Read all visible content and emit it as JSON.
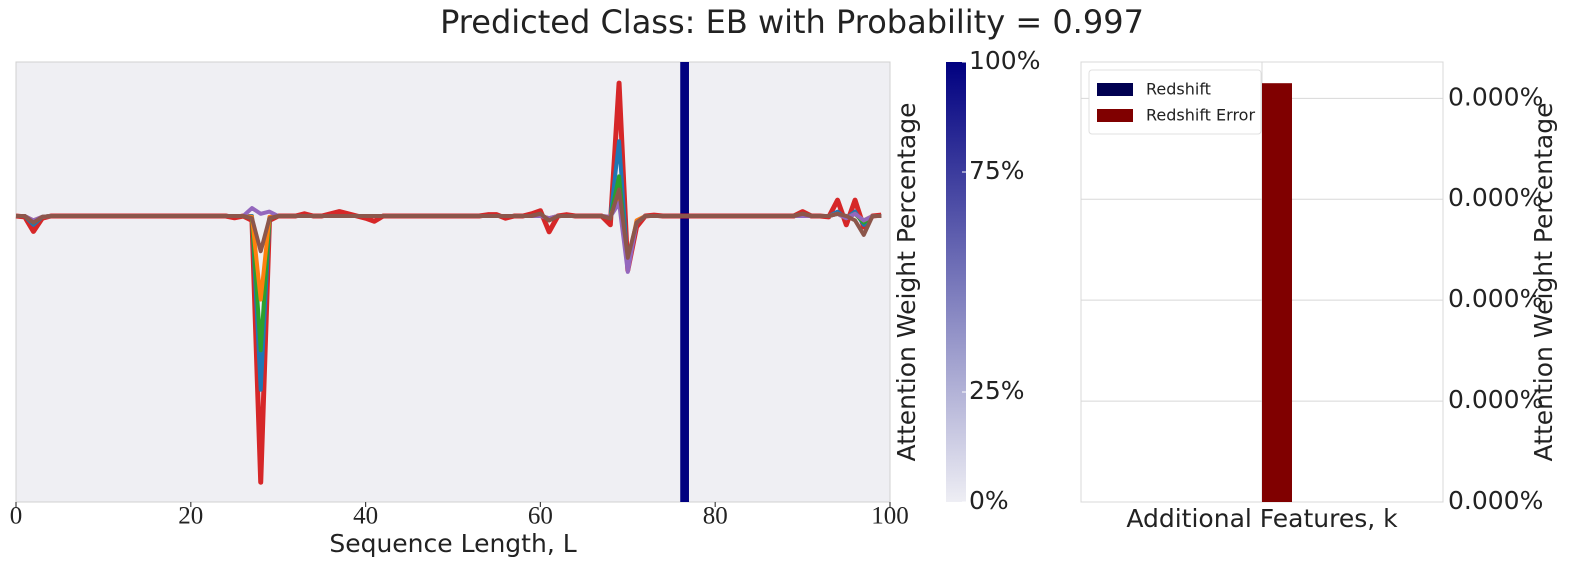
{
  "title": "Predicted Class: EB with Probability = 0.997",
  "chart_data": [
    {
      "type": "line",
      "xlabel": "Sequence Length, L",
      "xlim": [
        0,
        100
      ],
      "xticks": [
        0,
        20,
        40,
        60,
        80,
        100
      ],
      "ylim": [
        0,
        100
      ],
      "grid": false,
      "x": [
        0,
        1,
        2,
        3,
        4,
        5,
        6,
        7,
        8,
        9,
        10,
        11,
        12,
        13,
        14,
        15,
        16,
        17,
        18,
        19,
        20,
        21,
        22,
        23,
        24,
        25,
        26,
        27,
        28,
        29,
        30,
        31,
        32,
        33,
        34,
        35,
        36,
        37,
        38,
        39,
        40,
        41,
        42,
        43,
        44,
        45,
        46,
        47,
        48,
        49,
        50,
        51,
        52,
        53,
        54,
        55,
        56,
        57,
        58,
        59,
        60,
        61,
        62,
        63,
        64,
        65,
        66,
        67,
        68,
        69,
        70,
        71,
        72,
        73,
        74,
        75,
        76,
        77,
        78,
        79,
        80,
        81,
        82,
        83,
        84,
        85,
        86,
        87,
        88,
        89,
        90,
        91,
        92,
        93,
        94,
        95,
        96,
        97,
        98,
        99
      ],
      "highlight_span": [
        76,
        77
      ],
      "highlight_color": "#000080",
      "series": [
        {
          "color": "#d62728",
          "values": [
            65,
            64.8,
            61.5,
            64.5,
            65,
            65,
            65,
            65,
            65,
            65,
            65,
            65,
            65,
            65,
            65,
            65,
            65,
            65,
            65,
            65,
            65,
            65,
            65,
            65,
            65,
            64.6,
            65,
            64,
            4.5,
            64,
            65,
            65,
            65,
            65.5,
            65,
            65,
            65.5,
            66,
            65.5,
            65,
            64.5,
            63.8,
            65,
            65,
            65,
            65,
            65,
            65,
            65,
            65,
            65,
            65,
            65,
            65,
            65.3,
            65.3,
            64.5,
            65,
            65,
            65.5,
            66.2,
            61.4,
            65,
            65.3,
            65,
            65,
            65,
            65,
            63,
            95.2,
            52.7,
            62.5,
            65,
            65.2,
            65,
            65,
            65,
            65,
            65,
            65,
            65,
            65,
            65,
            65,
            65,
            65,
            65,
            65,
            65,
            65,
            66,
            65,
            65,
            64.8,
            68.6,
            63,
            68.6,
            62.5,
            65,
            65.2
          ]
        },
        {
          "color": "#1f77b4",
          "values": [
            65,
            65,
            63,
            64.8,
            65,
            65,
            65,
            65,
            65,
            65,
            65,
            65,
            65,
            65,
            65,
            65,
            65,
            65,
            65,
            65,
            65,
            65,
            65,
            65,
            65,
            65,
            65,
            65,
            25.5,
            64.5,
            65,
            65,
            65,
            65,
            65,
            65,
            65,
            65,
            65,
            65,
            65,
            65,
            65,
            65,
            65,
            65,
            65,
            65,
            65,
            65,
            65,
            65,
            65,
            65,
            65,
            65,
            65,
            65,
            65,
            65,
            65.5,
            64,
            65,
            65,
            65,
            65,
            65,
            65,
            64.5,
            82,
            53,
            63.5,
            65,
            65,
            65,
            65,
            65,
            65,
            65,
            65,
            65,
            65,
            65,
            65,
            65,
            65,
            65,
            65,
            65,
            65,
            65.5,
            65,
            65,
            65,
            66,
            64.5,
            66,
            63,
            65,
            65
          ]
        },
        {
          "color": "#2ca02c",
          "values": [
            65,
            65,
            63.5,
            64.8,
            65,
            65,
            65,
            65,
            65,
            65,
            65,
            65,
            65,
            65,
            65,
            65,
            65,
            65,
            65,
            65,
            65,
            65,
            65,
            65,
            65,
            65,
            65,
            64.5,
            34.5,
            64.5,
            65,
            65,
            65,
            65,
            65,
            65,
            65,
            65,
            65,
            65,
            65,
            65,
            65,
            65,
            65,
            65,
            65,
            65,
            65,
            65,
            65,
            65,
            65,
            65,
            65,
            65,
            65,
            65,
            65,
            65,
            65.5,
            64,
            65,
            65,
            65,
            65,
            65,
            65,
            64.5,
            74,
            53.5,
            63.5,
            65,
            65,
            65,
            65,
            65,
            65,
            65,
            65,
            65,
            65,
            65,
            65,
            65,
            65,
            65,
            65,
            65,
            65,
            65.5,
            65,
            65,
            65,
            65.5,
            64.5,
            65.5,
            63.5,
            65,
            65
          ]
        },
        {
          "color": "#ff7f0e",
          "values": [
            65,
            65,
            64,
            64.8,
            65,
            65,
            65,
            65,
            65,
            65,
            65,
            65,
            65,
            65,
            65,
            65,
            65,
            65,
            65,
            65,
            65,
            65,
            65,
            65,
            65,
            65,
            65,
            64.8,
            46,
            64.8,
            65,
            65,
            65,
            65,
            65,
            65,
            65,
            65,
            65,
            65,
            65,
            65,
            65,
            65,
            65,
            65,
            65,
            65,
            65,
            65,
            65,
            65,
            65,
            65,
            65,
            65,
            65,
            65,
            65,
            65,
            65,
            64.5,
            65,
            65,
            65,
            65,
            65,
            65,
            64.8,
            70,
            54,
            64,
            65,
            65,
            65,
            65,
            65,
            65,
            65,
            65,
            65,
            65,
            65,
            65,
            65,
            65,
            65,
            65,
            65,
            65,
            65,
            65,
            65,
            65,
            65.5,
            64.5,
            65.5,
            64,
            65,
            65
          ]
        },
        {
          "color": "#9467bd",
          "values": [
            65,
            65,
            64,
            64.8,
            65,
            65,
            65,
            65,
            65,
            65,
            65,
            65,
            65,
            65,
            65,
            65,
            65,
            65,
            65,
            65,
            65,
            65,
            65,
            65,
            65,
            65,
            65,
            66.8,
            65.5,
            66,
            65,
            65,
            65,
            65,
            65,
            65,
            65,
            65,
            65,
            65,
            65,
            65,
            65,
            65,
            65,
            65,
            65,
            65,
            65,
            65,
            65,
            65,
            65,
            65,
            65,
            65,
            65,
            65,
            65,
            65,
            65,
            64.5,
            65,
            65,
            65,
            65,
            65,
            65,
            64.8,
            68,
            52.3,
            63.5,
            65,
            65,
            65,
            65,
            65,
            65,
            65,
            65,
            65,
            65,
            65,
            65,
            65,
            65,
            65,
            65,
            65,
            65,
            65,
            65,
            65,
            65,
            65.5,
            64.5,
            65.5,
            64,
            65,
            65
          ]
        },
        {
          "color": "#8c564b",
          "values": [
            65,
            65,
            63.5,
            64.8,
            65,
            65,
            65,
            65,
            65,
            65,
            65,
            65,
            65,
            65,
            65,
            65,
            65,
            65,
            65,
            65,
            65,
            65,
            65,
            65,
            65,
            65,
            65,
            64.5,
            57,
            64.5,
            65,
            65,
            65,
            65,
            65,
            65,
            65,
            65,
            65,
            65,
            65,
            65,
            65,
            65,
            65,
            65,
            65,
            65,
            65,
            65,
            65,
            65,
            65,
            65,
            65,
            65,
            65,
            65,
            65,
            65,
            65.5,
            64,
            65,
            65,
            65,
            65,
            65,
            65,
            64.5,
            71,
            55.5,
            63.5,
            65,
            65,
            65,
            65,
            65,
            65,
            65,
            65,
            65,
            65,
            65,
            65,
            65,
            65,
            65,
            65,
            65,
            65,
            65.5,
            65,
            65,
            65,
            65.5,
            65,
            64,
            60.7,
            65,
            65
          ]
        }
      ]
    },
    {
      "type": "colorbar",
      "ylabel": "Attention Weight Percentage",
      "ylim": [
        0,
        100
      ],
      "yticks": [
        {
          "value": 0,
          "label": "0%"
        },
        {
          "value": 25,
          "label": "25%"
        },
        {
          "value": 75,
          "label": "75%"
        },
        {
          "value": 100,
          "label": "100%"
        }
      ],
      "colors": [
        "#eeeef4",
        "#000080"
      ]
    },
    {
      "type": "bar",
      "xlabel": "Additional Features, k",
      "ylabel": "Attention Weight Percentage",
      "categories": [
        null
      ],
      "ylim": [
        0,
        4.36e-05
      ],
      "yticks": [
        {
          "value": 0,
          "label": "0.000%"
        },
        {
          "value": 1e-05,
          "label": "0.000%"
        },
        {
          "value": 2e-05,
          "label": "0.000%"
        },
        {
          "value": 3e-05,
          "label": "0.000%"
        },
        {
          "value": 4e-05,
          "label": "0.000%"
        }
      ],
      "grid": true,
      "legend": "upper left",
      "series": [
        {
          "name": "Redshift",
          "color": "#000050",
          "values": [
            0
          ]
        },
        {
          "name": "Redshift Error",
          "color": "#800000",
          "values": [
            4.15e-05
          ]
        }
      ]
    }
  ]
}
